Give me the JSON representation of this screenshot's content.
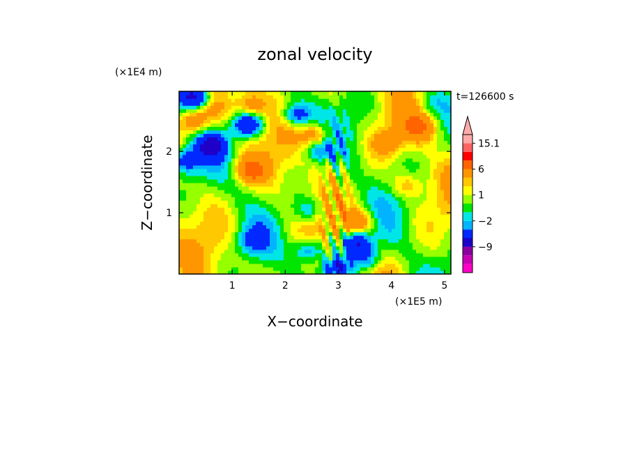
{
  "chart_data": {
    "type": "heatmap",
    "title": "zonal velocity",
    "xlabel": "X−coordinate",
    "ylabel": "Z−coordinate",
    "x_multiplier_label": "(×1E5 m)",
    "y_multiplier_label": "(×1E4 m)",
    "time_label": "t=126600 s",
    "xlim": [
      0,
      5.12
    ],
    "ylim": [
      0,
      2.98
    ],
    "x_ticks": [
      1,
      2,
      3,
      4,
      5
    ],
    "y_ticks": [
      1,
      2
    ],
    "colorbar": {
      "levels": [
        -15,
        -12,
        -9,
        -6,
        -3,
        -2,
        -1,
        0,
        1,
        2,
        3,
        6,
        9,
        12,
        15.1
      ],
      "labels": [
        {
          "text": "15.1",
          "value": 15.1
        },
        {
          "text": "6",
          "value": 6
        },
        {
          "text": "1",
          "value": 1
        },
        {
          "text": "−2",
          "value": -2
        },
        {
          "text": "−9",
          "value": -9
        }
      ],
      "colors": [
        "#ff00c8",
        "#c800b4",
        "#8c00a0",
        "#1e00c8",
        "#0028ff",
        "#00b4ff",
        "#00e6e6",
        "#00e600",
        "#96ff00",
        "#ffff00",
        "#ffc800",
        "#ff9600",
        "#ff6400",
        "#ff0000",
        "#ff6464",
        "#ffaaaa"
      ]
    },
    "features": [
      {
        "x": 3.35,
        "z": 0.52,
        "value": -7
      },
      {
        "x": 1.3,
        "z": 2.45,
        "value": -7
      },
      {
        "x": 2.2,
        "z": 2.6,
        "value": -6
      },
      {
        "x": 0.3,
        "z": 2.9,
        "value": -8
      },
      {
        "x": 0.6,
        "z": 2.1,
        "value": -6
      },
      {
        "x": 0.1,
        "z": 1.85,
        "value": -5
      },
      {
        "x": 2.6,
        "z": 2.05,
        "value": -4
      },
      {
        "x": 2.45,
        "z": 0.4,
        "value": -5
      },
      {
        "x": 2.95,
        "z": 0.1,
        "value": -6
      },
      {
        "x": 3.55,
        "z": 0.25,
        "value": -4
      },
      {
        "x": 2.45,
        "z": 1.05,
        "value": -3
      },
      {
        "x": 1.35,
        "z": 0.55,
        "value": -3
      },
      {
        "x": 0.3,
        "z": 2.5,
        "value": 5
      },
      {
        "x": 1.35,
        "z": 1.7,
        "value": 6
      },
      {
        "x": 2.6,
        "z": 2.25,
        "value": 5
      },
      {
        "x": 4.5,
        "z": 2.4,
        "value": 5
      },
      {
        "x": 3.4,
        "z": 0.85,
        "value": 4
      },
      {
        "x": 1.35,
        "z": 2.75,
        "value": 4
      },
      {
        "x": 3.9,
        "z": 2.15,
        "value": 3
      },
      {
        "x": 4.3,
        "z": 1.45,
        "value": 3
      },
      {
        "x": 0.7,
        "z": 2.7,
        "value": 2
      },
      {
        "x": 4.75,
        "z": 2.8,
        "value": -2
      },
      {
        "x": 4.9,
        "z": 2.0,
        "value": -1
      }
    ]
  }
}
